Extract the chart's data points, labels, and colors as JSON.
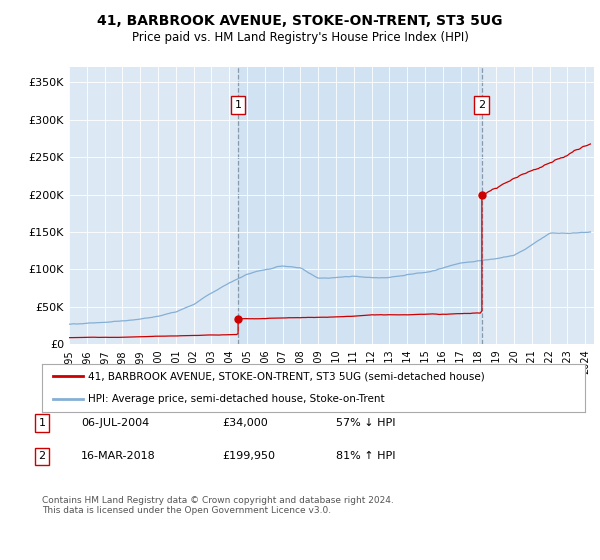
{
  "title": "41, BARBROOK AVENUE, STOKE-ON-TRENT, ST3 5UG",
  "subtitle": "Price paid vs. HM Land Registry's House Price Index (HPI)",
  "background_color": "#ffffff",
  "plot_bg_color": "#dce9f5",
  "red_line_color": "#cc0000",
  "blue_line_color": "#85afd4",
  "vline_color": "#8899aa",
  "marker1_x": 2004.5,
  "marker1_y": 34000,
  "marker2_x": 2018.2,
  "marker2_y": 199950,
  "ylim_max": 370000,
  "xlim_min": 1995,
  "xlim_max": 2024.5,
  "legend_entries": [
    "41, BARBROOK AVENUE, STOKE-ON-TRENT, ST3 5UG (semi-detached house)",
    "HPI: Average price, semi-detached house, Stoke-on-Trent"
  ],
  "annotation1_label": "1",
  "annotation1_date": "06-JUL-2004",
  "annotation1_price": "£34,000",
  "annotation1_hpi": "57% ↓ HPI",
  "annotation2_label": "2",
  "annotation2_date": "16-MAR-2018",
  "annotation2_price": "£199,950",
  "annotation2_hpi": "81% ↑ HPI",
  "footer": "Contains HM Land Registry data © Crown copyright and database right 2024.\nThis data is licensed under the Open Government Licence v3.0.",
  "yticks": [
    0,
    50000,
    100000,
    150000,
    200000,
    250000,
    300000,
    350000
  ],
  "ytick_labels": [
    "£0",
    "£50K",
    "£100K",
    "£150K",
    "£200K",
    "£250K",
    "£300K",
    "£350K"
  ]
}
